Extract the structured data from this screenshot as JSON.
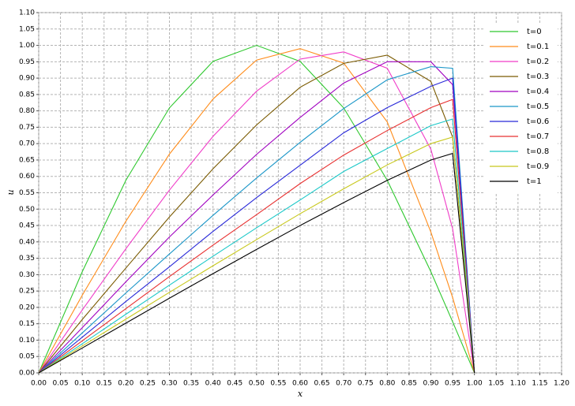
{
  "chart_data": {
    "type": "line",
    "x_label": "x",
    "y_label": "u",
    "x": [
      0,
      0.1,
      0.2,
      0.3,
      0.4,
      0.5,
      0.6,
      0.7,
      0.8,
      0.9,
      0.95,
      1.0
    ],
    "series": [
      {
        "name": "t=0",
        "color": "#2ec82e",
        "values": [
          0,
          0.309,
          0.588,
          0.809,
          0.951,
          1.0,
          0.951,
          0.809,
          0.588,
          0.309,
          0.156,
          0
        ]
      },
      {
        "name": "t=0.1",
        "color": "#ff8c1a",
        "values": [
          0,
          0.237,
          0.463,
          0.668,
          0.836,
          0.955,
          0.99,
          0.946,
          0.766,
          0.43,
          0.23,
          0
        ]
      },
      {
        "name": "t=0.2",
        "color": "#f03cc8",
        "values": [
          0,
          0.192,
          0.379,
          0.558,
          0.722,
          0.86,
          0.958,
          0.98,
          0.93,
          0.683,
          0.44,
          0
        ]
      },
      {
        "name": "t=0.3",
        "color": "#7a5a00",
        "values": [
          0,
          0.163,
          0.32,
          0.476,
          0.623,
          0.757,
          0.872,
          0.945,
          0.97,
          0.89,
          0.72,
          0
        ]
      },
      {
        "name": "t=0.4",
        "color": "#a000c0",
        "values": [
          0,
          0.138,
          0.278,
          0.415,
          0.543,
          0.667,
          0.78,
          0.885,
          0.95,
          0.95,
          0.88,
          0
        ]
      },
      {
        "name": "t=0.5",
        "color": "#1a96c8",
        "values": [
          0,
          0.122,
          0.244,
          0.363,
          0.481,
          0.595,
          0.704,
          0.807,
          0.895,
          0.935,
          0.93,
          0
        ]
      },
      {
        "name": "t=0.6",
        "color": "#2828d8",
        "values": [
          0,
          0.109,
          0.218,
          0.324,
          0.432,
          0.535,
          0.634,
          0.733,
          0.81,
          0.875,
          0.9,
          0
        ]
      },
      {
        "name": "t=0.7",
        "color": "#e83030",
        "values": [
          0,
          0.098,
          0.196,
          0.294,
          0.39,
          0.483,
          0.578,
          0.665,
          0.74,
          0.81,
          0.835,
          0
        ]
      },
      {
        "name": "t=0.8",
        "color": "#1cc8c8",
        "values": [
          0,
          0.089,
          0.179,
          0.268,
          0.356,
          0.443,
          0.528,
          0.615,
          0.685,
          0.755,
          0.775,
          0
        ]
      },
      {
        "name": "t=0.9",
        "color": "#c8c81c",
        "values": [
          0,
          0.082,
          0.164,
          0.246,
          0.327,
          0.407,
          0.486,
          0.562,
          0.635,
          0.7,
          0.72,
          0
        ]
      },
      {
        "name": "t=1",
        "color": "#000000",
        "values": [
          0,
          0.076,
          0.152,
          0.228,
          0.303,
          0.377,
          0.45,
          0.52,
          0.588,
          0.65,
          0.67,
          0
        ]
      }
    ],
    "xlim": [
      0,
      1.2
    ],
    "ylim": [
      0,
      1.1
    ],
    "grid": true,
    "legend": "upper right",
    "xticks": [
      {
        "value": 0,
        "label": "0.00"
      },
      {
        "value": 0.05,
        "label": "0.05"
      },
      {
        "value": 0.1,
        "label": "0.10"
      },
      {
        "value": 0.15,
        "label": "0.15"
      },
      {
        "value": 0.2,
        "label": "0.20"
      },
      {
        "value": 0.25,
        "label": "0.25"
      },
      {
        "value": 0.3,
        "label": "0.30"
      },
      {
        "value": 0.35,
        "label": "0.35"
      },
      {
        "value": 0.4,
        "label": "0.40"
      },
      {
        "value": 0.45,
        "label": "0.45"
      },
      {
        "value": 0.5,
        "label": "0.50"
      },
      {
        "value": 0.55,
        "label": "0.55"
      },
      {
        "value": 0.6,
        "label": "0.60"
      },
      {
        "value": 0.65,
        "label": "0.65"
      },
      {
        "value": 0.7,
        "label": "0.70"
      },
      {
        "value": 0.75,
        "label": "0.75"
      },
      {
        "value": 0.8,
        "label": "0.80"
      },
      {
        "value": 0.85,
        "label": "0.85"
      },
      {
        "value": 0.9,
        "label": "0.90"
      },
      {
        "value": 0.95,
        "label": "0.95"
      },
      {
        "value": 1.0,
        "label": "1.00"
      },
      {
        "value": 1.05,
        "label": "1.05"
      },
      {
        "value": 1.1,
        "label": "1.10"
      },
      {
        "value": 1.15,
        "label": "1.15"
      },
      {
        "value": 1.2,
        "label": "1.20"
      }
    ],
    "yticks": [
      {
        "value": 0,
        "label": "0.00"
      },
      {
        "value": 0.05,
        "label": "0.05"
      },
      {
        "value": 0.1,
        "label": "0.10"
      },
      {
        "value": 0.15,
        "label": "0.15"
      },
      {
        "value": 0.2,
        "label": "0.20"
      },
      {
        "value": 0.25,
        "label": "0.25"
      },
      {
        "value": 0.3,
        "label": "0.30"
      },
      {
        "value": 0.35,
        "label": "0.35"
      },
      {
        "value": 0.4,
        "label": "0.40"
      },
      {
        "value": 0.45,
        "label": "0.45"
      },
      {
        "value": 0.5,
        "label": "0.50"
      },
      {
        "value": 0.55,
        "label": "0.55"
      },
      {
        "value": 0.6,
        "label": "0.60"
      },
      {
        "value": 0.65,
        "label": "0.65"
      },
      {
        "value": 0.7,
        "label": "0.70"
      },
      {
        "value": 0.75,
        "label": "0.75"
      },
      {
        "value": 0.8,
        "label": "0.80"
      },
      {
        "value": 0.85,
        "label": "0.85"
      },
      {
        "value": 0.9,
        "label": "0.90"
      },
      {
        "value": 0.95,
        "label": "0.95"
      },
      {
        "value": 1.0,
        "label": "1.00"
      },
      {
        "value": 1.05,
        "label": "1.05"
      },
      {
        "value": 1.1,
        "label": "1.10"
      }
    ]
  }
}
